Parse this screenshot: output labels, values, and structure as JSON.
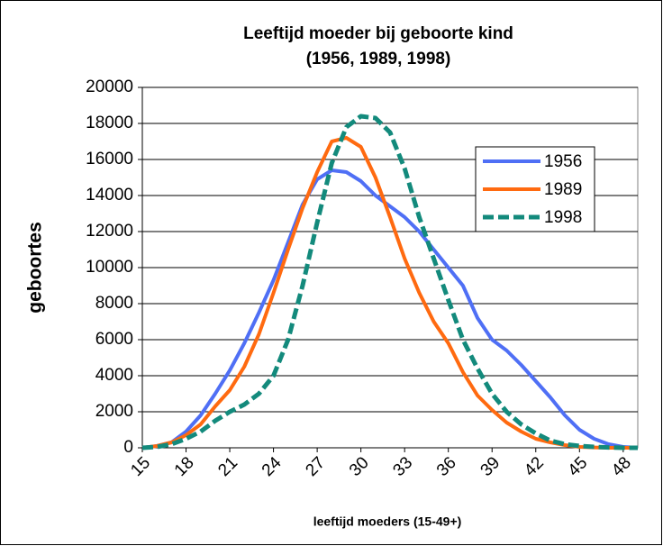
{
  "chart_data": {
    "type": "line",
    "title": [
      "Leeftijd moeder bij geboorte kind",
      "(1956, 1989, 1998)"
    ],
    "xlabel": "leeftijd moeders (15-49+)",
    "ylabel": "geboortes",
    "x": [
      15,
      16,
      17,
      18,
      19,
      20,
      21,
      22,
      23,
      24,
      25,
      26,
      27,
      28,
      29,
      30,
      31,
      32,
      33,
      34,
      35,
      36,
      37,
      38,
      39,
      40,
      41,
      42,
      43,
      44,
      45,
      46,
      47,
      48,
      49
    ],
    "xlim": [
      15,
      49
    ],
    "xticks": [
      15,
      18,
      21,
      24,
      27,
      30,
      33,
      36,
      39,
      42,
      45,
      48
    ],
    "ylim": [
      0,
      20000
    ],
    "yticks": [
      0,
      2000,
      4000,
      6000,
      8000,
      10000,
      12000,
      14000,
      16000,
      18000,
      20000
    ],
    "grid": true,
    "legend": "right",
    "series": [
      {
        "name": "1956",
        "color": "#4f6ff5",
        "dash": false,
        "values": [
          0,
          100,
          300,
          900,
          1800,
          3000,
          4300,
          5800,
          7500,
          9300,
          11400,
          13500,
          14900,
          15400,
          15300,
          14800,
          14000,
          13400,
          12800,
          12000,
          11000,
          10000,
          9000,
          7200,
          6000,
          5400,
          4600,
          3700,
          2800,
          1800,
          1000,
          500,
          200,
          50,
          0
        ]
      },
      {
        "name": "1989",
        "color": "#ff6a10",
        "dash": false,
        "values": [
          0,
          100,
          300,
          700,
          1300,
          2300,
          3200,
          4500,
          6300,
          8600,
          11000,
          13300,
          15300,
          17000,
          17200,
          16700,
          15000,
          12800,
          10500,
          8600,
          7000,
          5800,
          4200,
          2900,
          2100,
          1400,
          900,
          500,
          300,
          150,
          50,
          20,
          0,
          0,
          0
        ]
      },
      {
        "name": "1998",
        "color": "#138a7c",
        "dash": true,
        "values": [
          0,
          50,
          200,
          500,
          900,
          1500,
          2000,
          2400,
          3000,
          4000,
          6000,
          9000,
          12500,
          15800,
          17800,
          18400,
          18300,
          17500,
          15500,
          12800,
          10500,
          8200,
          6000,
          4400,
          3000,
          2000,
          1300,
          800,
          400,
          200,
          100,
          50,
          20,
          0,
          0
        ]
      }
    ]
  }
}
